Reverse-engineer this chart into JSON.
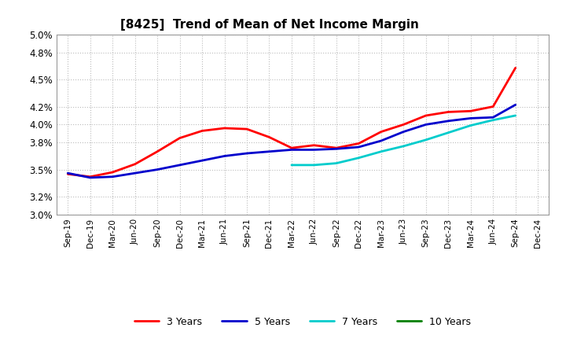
{
  "title": "[8425]  Trend of Mean of Net Income Margin",
  "ylim": [
    0.03,
    0.05
  ],
  "yticks": [
    0.03,
    0.032,
    0.035,
    0.038,
    0.04,
    0.042,
    0.045,
    0.048,
    0.05
  ],
  "ytick_labels": [
    "3.0%",
    "3.2%",
    "3.5%",
    "3.8%",
    "4.0%",
    "4.2%",
    "4.5%",
    "4.8%",
    "5.0%"
  ],
  "x_labels": [
    "Sep-19",
    "Dec-19",
    "Mar-20",
    "Jun-20",
    "Sep-20",
    "Dec-20",
    "Mar-21",
    "Jun-21",
    "Sep-21",
    "Dec-21",
    "Mar-22",
    "Jun-22",
    "Sep-22",
    "Dec-22",
    "Mar-23",
    "Jun-23",
    "Sep-23",
    "Dec-23",
    "Mar-24",
    "Jun-24",
    "Sep-24",
    "Dec-24"
  ],
  "y3": [
    3.45,
    3.42,
    3.47,
    3.56,
    3.7,
    3.85,
    3.93,
    3.96,
    3.95,
    3.86,
    3.74,
    3.77,
    3.74,
    3.79,
    3.92,
    4.0,
    4.1,
    4.14,
    4.15,
    4.2,
    4.63,
    null
  ],
  "y5": [
    3.46,
    3.41,
    3.42,
    3.46,
    3.5,
    3.55,
    3.6,
    3.65,
    3.68,
    3.7,
    3.72,
    3.72,
    3.73,
    3.75,
    3.82,
    3.92,
    4.0,
    4.04,
    4.07,
    4.08,
    4.22,
    null
  ],
  "y7": [
    null,
    null,
    null,
    null,
    null,
    null,
    null,
    null,
    null,
    null,
    3.55,
    3.55,
    3.57,
    3.63,
    3.7,
    3.76,
    3.83,
    3.91,
    3.99,
    4.05,
    4.1,
    null
  ],
  "y10": [
    null,
    null,
    null,
    null,
    null,
    null,
    null,
    null,
    null,
    null,
    null,
    null,
    null,
    null,
    null,
    null,
    null,
    null,
    null,
    null,
    null,
    null
  ],
  "color3": "#FF0000",
  "color5": "#0000CC",
  "color7": "#00CCCC",
  "color10": "#008000",
  "background_color": "#FFFFFF",
  "grid_color": "#BBBBBB",
  "title_fontsize": 11
}
